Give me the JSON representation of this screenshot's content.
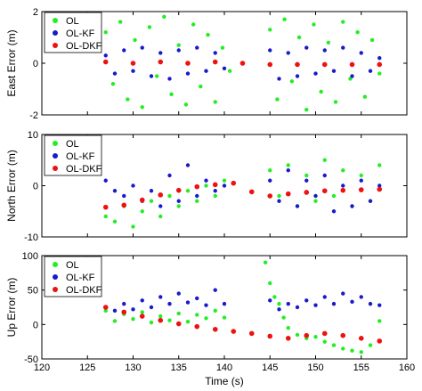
{
  "chart_data": [
    {
      "type": "scatter",
      "panel": "east",
      "title": "",
      "xlabel": "",
      "ylabel": "East Error (m)",
      "xlim": [
        120,
        160
      ],
      "ylim": [
        -2,
        2
      ],
      "yticks": [
        -2,
        0,
        2
      ],
      "grid": false,
      "legend": "top-left",
      "series": [
        {
          "name": "OL",
          "color": "#22ee22",
          "x": [
            127,
            127.8,
            128.6,
            129.4,
            130.2,
            131,
            131.8,
            132.6,
            133.4,
            134.2,
            135,
            135.8,
            136.6,
            137.4,
            138.2,
            139,
            139.8,
            140.6,
            145,
            145.8,
            146.6,
            147.4,
            148.2,
            149,
            149.8,
            150.6,
            151.4,
            152.2,
            153,
            153.8,
            154.6,
            155.4,
            156.2,
            157
          ],
          "y": [
            1.2,
            -0.8,
            1.6,
            -1.4,
            0.9,
            -1.7,
            1.4,
            -0.5,
            1.8,
            -1.2,
            0.7,
            -1.6,
            1.5,
            -0.9,
            1.1,
            -1.5,
            0.6,
            -0.3,
            1.3,
            -1.4,
            1.7,
            -0.7,
            1.0,
            -1.8,
            1.5,
            -1.1,
            0.8,
            -1.5,
            1.6,
            -0.6,
            1.2,
            -1.3,
            0.9,
            -0.4
          ]
        },
        {
          "name": "OL-KF",
          "color": "#1a1acc",
          "x": [
            127,
            128,
            129,
            130,
            131,
            132,
            133,
            134,
            135,
            136,
            137,
            138,
            139,
            140,
            145,
            146,
            147,
            148,
            149,
            150,
            151,
            152,
            153,
            154,
            155,
            156,
            157
          ],
          "y": [
            0.3,
            -0.4,
            0.5,
            -0.3,
            0.6,
            -0.5,
            0.4,
            -0.6,
            0.5,
            -0.4,
            0.6,
            -0.3,
            0.4,
            -0.2,
            0.5,
            -0.6,
            0.4,
            -0.5,
            0.6,
            -0.4,
            0.5,
            -0.3,
            0.6,
            -0.5,
            0.4,
            -0.3,
            0.2
          ]
        },
        {
          "name": "OL-DKF",
          "color": "#ee1111",
          "x": [
            127,
            130,
            133,
            136,
            139,
            142,
            145,
            148,
            151,
            154,
            157
          ],
          "y": [
            0.05,
            0.0,
            0.05,
            0.0,
            0.05,
            0.0,
            -0.05,
            -0.05,
            -0.05,
            -0.05,
            -0.05
          ]
        }
      ]
    },
    {
      "type": "scatter",
      "panel": "north",
      "title": "",
      "xlabel": "",
      "ylabel": "North Error (m)",
      "xlim": [
        120,
        160
      ],
      "ylim": [
        -10,
        10
      ],
      "yticks": [
        -10,
        0,
        10
      ],
      "grid": false,
      "legend": "top-left",
      "series": [
        {
          "name": "OL",
          "color": "#22ee22",
          "x": [
            127,
            128,
            129,
            130,
            131,
            132,
            133,
            134,
            135,
            136,
            137,
            138,
            139,
            140,
            145,
            146,
            147,
            148,
            149,
            150,
            151,
            152,
            153,
            154,
            155,
            156,
            157
          ],
          "y": [
            -6,
            -7,
            -4,
            -8,
            -5,
            -3,
            -6,
            -2,
            -4,
            -1,
            -3,
            0,
            -2,
            1,
            3,
            -2,
            4,
            -4,
            2,
            -3,
            5,
            -2,
            3,
            -4,
            2,
            -3,
            4
          ]
        },
        {
          "name": "OL-KF",
          "color": "#1a1acc",
          "x": [
            127,
            128,
            129,
            130,
            131,
            132,
            133,
            134,
            135,
            136,
            137,
            138,
            139,
            140,
            145,
            146,
            147,
            148,
            149,
            150,
            151,
            152,
            153,
            154,
            155,
            156,
            157
          ],
          "y": [
            1,
            -1,
            -2,
            0,
            -3,
            -1,
            -4,
            2,
            -3,
            4,
            -2,
            1,
            -1,
            0,
            1,
            -3,
            3,
            -4,
            1,
            -2,
            2,
            -5,
            0,
            -4,
            1,
            -3,
            0
          ]
        },
        {
          "name": "OL-DKF",
          "color": "#ee1111",
          "x": [
            127,
            129,
            131,
            133,
            135,
            137,
            139,
            141,
            143,
            145,
            147,
            149,
            151,
            153,
            155,
            157
          ],
          "y": [
            -4.2,
            -3.8,
            -2.8,
            -1.8,
            -0.9,
            -0.2,
            0.2,
            0.5,
            -1.2,
            -2.0,
            -1.6,
            -1.3,
            -1.0,
            -0.9,
            -0.8,
            -0.7
          ]
        }
      ]
    },
    {
      "type": "scatter",
      "panel": "up",
      "title": "",
      "xlabel": "Time (s)",
      "ylabel": "Up Error (m)",
      "xlim": [
        120,
        160
      ],
      "ylim": [
        -50,
        100
      ],
      "xticks": [
        120,
        125,
        130,
        135,
        140,
        145,
        150,
        155,
        160
      ],
      "yticks": [
        -50,
        0,
        50,
        100
      ],
      "grid": false,
      "legend": "top-left",
      "series": [
        {
          "name": "OL",
          "color": "#22ee22",
          "x": [
            127,
            128,
            129,
            130,
            131,
            132,
            133,
            134,
            135,
            136,
            137,
            138,
            139,
            140,
            144.5,
            145,
            145.5,
            146,
            146.5,
            147,
            148,
            149,
            150,
            151,
            152,
            153,
            154,
            155,
            156,
            157
          ],
          "y": [
            20,
            5,
            15,
            8,
            18,
            3,
            12,
            6,
            16,
            4,
            14,
            9,
            20,
            10,
            90,
            60,
            40,
            30,
            10,
            -5,
            -15,
            -20,
            -18,
            -25,
            -30,
            -35,
            -38,
            -40,
            -30,
            5
          ]
        },
        {
          "name": "OL-KF",
          "color": "#1a1acc",
          "x": [
            127,
            128,
            129,
            130,
            131,
            132,
            133,
            134,
            135,
            136,
            137,
            138,
            139,
            140,
            145,
            146,
            147,
            148,
            149,
            150,
            151,
            152,
            153,
            154,
            155,
            156,
            157
          ],
          "y": [
            25,
            20,
            30,
            22,
            35,
            25,
            40,
            30,
            45,
            32,
            38,
            28,
            50,
            30,
            35,
            22,
            30,
            25,
            35,
            28,
            40,
            30,
            45,
            33,
            40,
            30,
            28
          ]
        },
        {
          "name": "OL-DKF",
          "color": "#ee1111",
          "x": [
            127,
            129,
            131,
            133,
            135,
            137,
            139,
            141,
            143,
            145,
            147,
            149,
            151,
            153,
            155,
            157
          ],
          "y": [
            25,
            18,
            12,
            6,
            1,
            -3,
            -7,
            -10,
            -13,
            -17,
            -20,
            -16,
            -13,
            -16,
            -20,
            -24
          ]
        }
      ]
    }
  ]
}
